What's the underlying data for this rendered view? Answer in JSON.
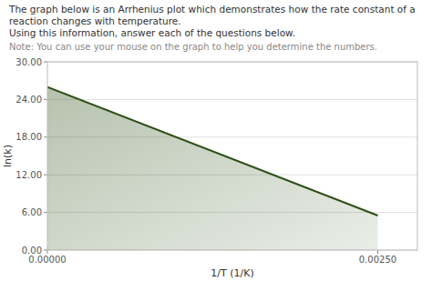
{
  "chart_data": {
    "type": "area",
    "title": "The graph below is an Arrhenius plot which demonstrates how the rate constant of a reaction changes with temperature.",
    "subtitle": "Using this information, answer each of the questions below.",
    "annotations": [
      "Note: You can use your mouse on the graph to help you determine the numbers."
    ],
    "xlabel": "1/T (1/K)",
    "ylabel": "ln(k)",
    "x": [
      0.0,
      0.0025
    ],
    "values": [
      26.0,
      5.5
    ],
    "color": "#2d5016",
    "xlim": [
      0.0,
      0.0028
    ],
    "ylim": [
      0.0,
      30.0
    ],
    "xticks": [
      {
        "value": 0.0,
        "label": "0.00000"
      },
      {
        "value": 0.0025,
        "label": "0.00250"
      }
    ],
    "yticks": [
      {
        "value": 0.0,
        "label": "0.00"
      },
      {
        "value": 6.0,
        "label": "6.00"
      },
      {
        "value": 12.0,
        "label": "12.00"
      },
      {
        "value": 18.0,
        "label": "18.00"
      },
      {
        "value": 24.0,
        "label": "24.00"
      },
      {
        "value": 30.0,
        "label": "30.00"
      }
    ],
    "grid": true
  }
}
